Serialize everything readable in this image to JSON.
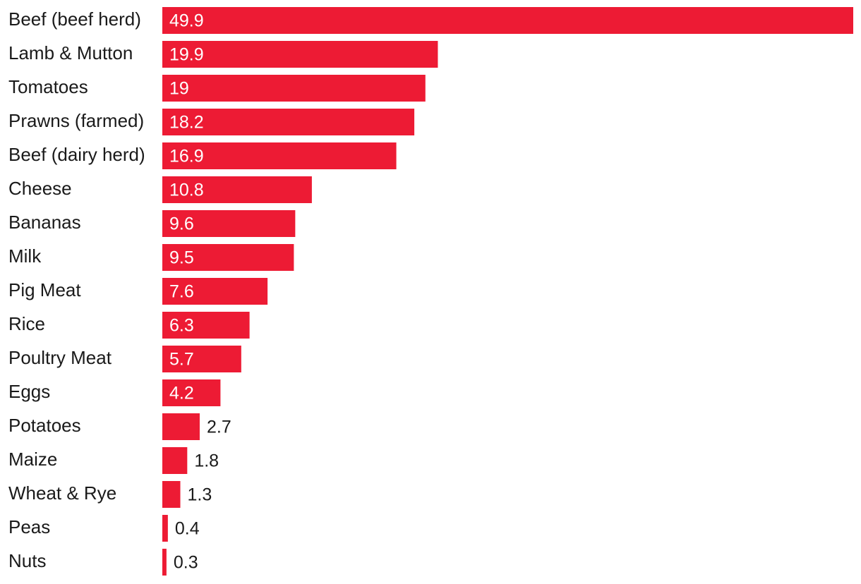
{
  "chart_data": {
    "type": "bar",
    "orientation": "horizontal",
    "title": "",
    "xlabel": "",
    "ylabel": "",
    "grid": false,
    "legend": "none",
    "bar_color": "#ED1B34",
    "categories": [
      "Beef (beef herd)",
      "Lamb & Mutton",
      "Tomatoes",
      "Prawns (farmed)",
      "Beef (dairy herd)",
      "Cheese",
      "Bananas",
      "Milk",
      "Pig Meat",
      "Rice",
      "Poultry Meat",
      "Eggs",
      "Potatoes",
      "Maize",
      "Wheat & Rye",
      "Peas",
      "Nuts"
    ],
    "values": [
      49.9,
      19.9,
      19,
      18.2,
      16.9,
      10.8,
      9.6,
      9.5,
      7.6,
      6.3,
      5.7,
      4.2,
      2.7,
      1.8,
      1.3,
      0.4,
      0.3
    ],
    "value_labels": [
      "49.9",
      "19.9",
      "19",
      "18.2",
      "16.9",
      "10.8",
      "9.6",
      "9.5",
      "7.6",
      "6.3",
      "5.7",
      "4.2",
      "2.7",
      "1.8",
      "1.3",
      "0.4",
      "0.3"
    ],
    "xlim": [
      0,
      49.9
    ]
  }
}
